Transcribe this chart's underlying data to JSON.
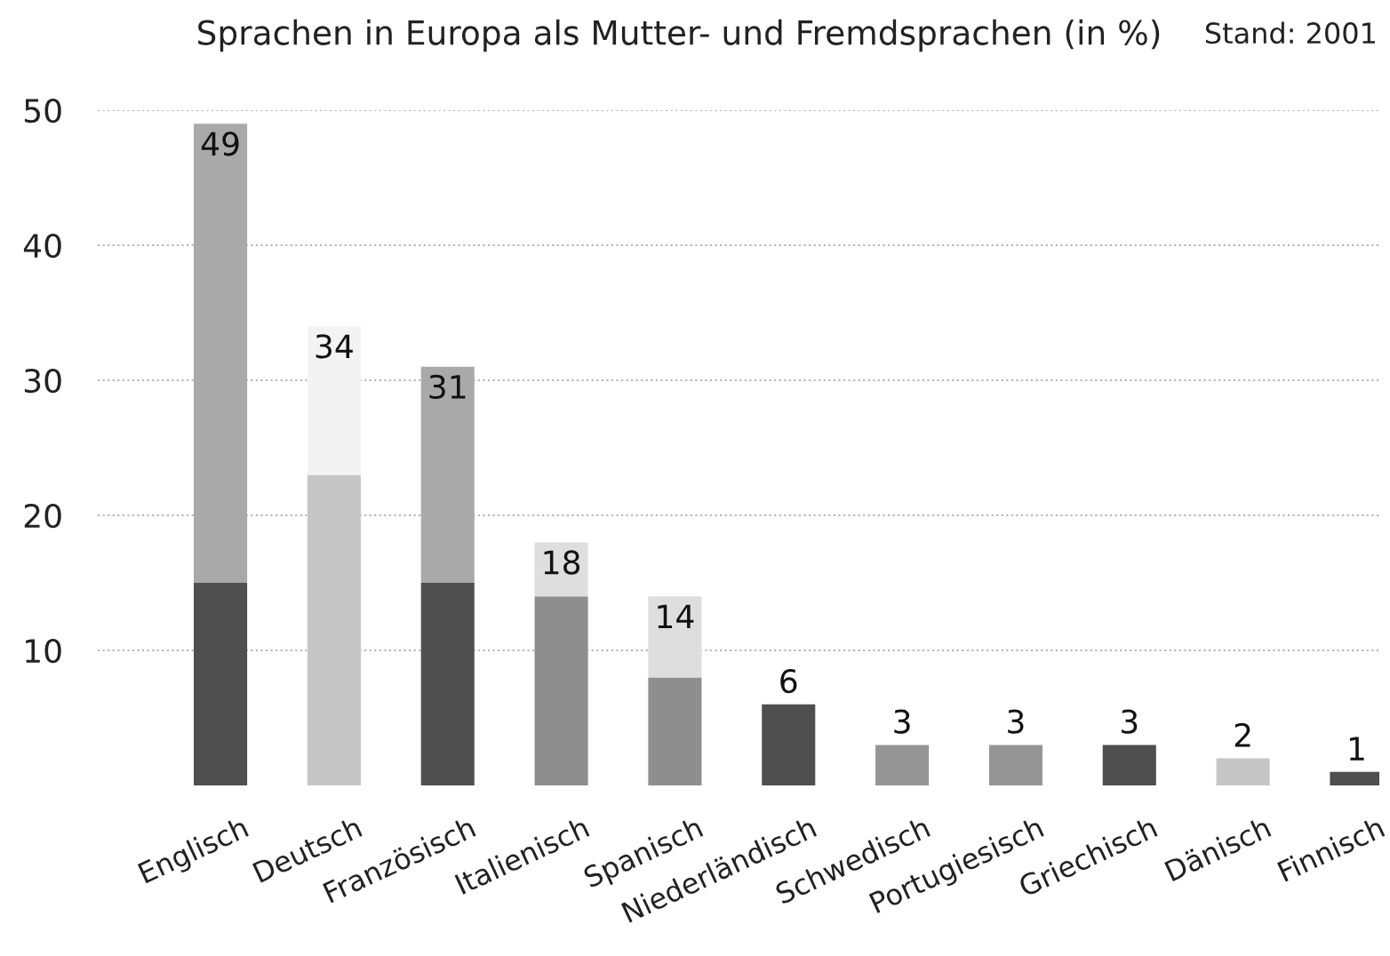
{
  "chart_data": {
    "type": "bar",
    "title": "Sprachen in Europa als Mutter- und Fremdsprachen (in %)",
    "annotations": [
      "Stand: 2001"
    ],
    "categories": [
      "Englisch",
      "Deutsch",
      "Französisch",
      "Italienisch",
      "Spanisch",
      "Niederländisch",
      "Schwedisch",
      "Portugiesisch",
      "Griechisch",
      "Dänisch",
      "Finnisch"
    ],
    "stacked": true,
    "series": [
      {
        "colors": [
          "#4f4f4f",
          "#c6c6c6",
          "#4f4f4f",
          "#8e8e8e",
          "#8e8e8e",
          "#4f4f4f",
          "#959595",
          "#959595",
          "#4f4f4f",
          "#c6c6c6",
          "#4f4f4f"
        ],
        "values": [
          15,
          23,
          15,
          14,
          8,
          6,
          3,
          3,
          3,
          2,
          1
        ]
      },
      {
        "colors": [
          "#a9a9a9",
          "#f3f3f3",
          "#a9a9a9",
          "#dedede",
          "#dedede",
          null,
          null,
          null,
          null,
          null,
          null
        ],
        "values": [
          34,
          11,
          16,
          4,
          6,
          null,
          null,
          null,
          null,
          null,
          null
        ]
      }
    ],
    "totals": [
      "49",
      "34",
      "31",
      "18",
      "14",
      "6",
      "3",
      "3",
      "3",
      "2",
      "1"
    ],
    "ylim": [
      0,
      50
    ],
    "yticks": [
      10,
      20,
      30,
      40,
      50
    ],
    "grid": "y"
  }
}
